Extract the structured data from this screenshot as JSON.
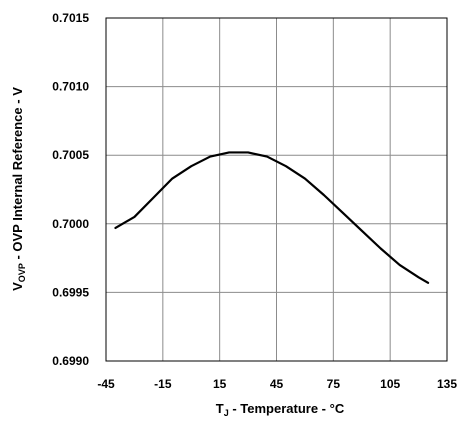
{
  "chart_data": {
    "type": "line",
    "title": "",
    "xlabel": {
      "prefix": "T",
      "sub": "J",
      "suffix": " - Temperature - °C"
    },
    "ylabel": {
      "prefix": "V",
      "sub": "OVP",
      "suffix": " - OVP Internal Reference - V"
    },
    "xlim": [
      -45,
      135
    ],
    "ylim": [
      0.699,
      0.7015
    ],
    "xticks": [
      -45,
      -15,
      15,
      45,
      75,
      105,
      135
    ],
    "xtick_labels": [
      "-45",
      "-15",
      "15",
      "45",
      "75",
      "105",
      "135"
    ],
    "yticks": [
      0.699,
      0.6995,
      0.7,
      0.7005,
      0.701,
      0.7015
    ],
    "ytick_labels": [
      "0.6990",
      "0.6995",
      "0.7000",
      "0.7005",
      "0.7010",
      "0.7015"
    ],
    "grid": true,
    "series": [
      {
        "name": "",
        "color": "#000000",
        "x": [
          -40,
          -30,
          -20,
          -10,
          0,
          10,
          20,
          30,
          40,
          50,
          60,
          70,
          80,
          90,
          100,
          110,
          120,
          125
        ],
        "y": [
          0.69997,
          0.70005,
          0.70019,
          0.70033,
          0.70042,
          0.70049,
          0.70052,
          0.70052,
          0.70049,
          0.70042,
          0.70033,
          0.70021,
          0.70008,
          0.69995,
          0.69982,
          0.6997,
          0.69961,
          0.69957
        ]
      }
    ]
  }
}
